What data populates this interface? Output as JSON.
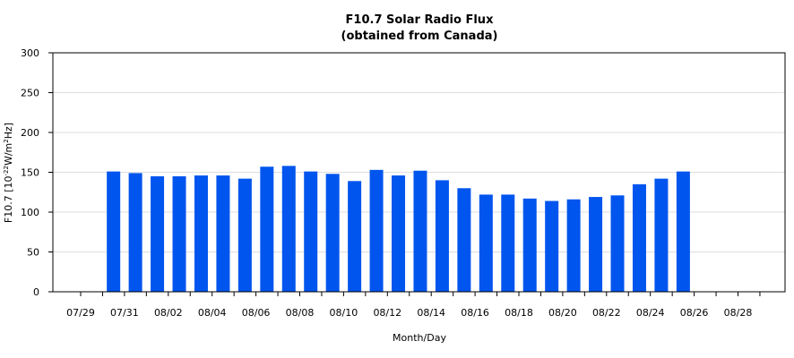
{
  "chart_data": {
    "type": "bar",
    "title": "F10.7 Solar Radio Flux",
    "subtitle": "(obtained from Canada)",
    "xlabel": "Month/Day",
    "ylabel_prefix": "F10.7 [10",
    "ylabel_exp1": "-22",
    "ylabel_mid": "W/m",
    "ylabel_exp2": "2",
    "ylabel_suffix": "Hz]",
    "ylim": [
      0,
      300
    ],
    "yticks": [
      0,
      50,
      100,
      150,
      200,
      250,
      300
    ],
    "grid": true,
    "bar_color": "#0055ee",
    "x_tick_labels": [
      "07/29",
      "07/31",
      "08/02",
      "08/04",
      "08/06",
      "08/08",
      "08/10",
      "08/12",
      "08/14",
      "08/16",
      "08/18",
      "08/20",
      "08/22",
      "08/24",
      "08/26",
      "08/28"
    ],
    "categories": [
      "07/29",
      "07/30",
      "07/31",
      "08/01",
      "08/02",
      "08/03",
      "08/04",
      "08/05",
      "08/06",
      "08/07",
      "08/08",
      "08/09",
      "08/10",
      "08/11",
      "08/12",
      "08/13",
      "08/14",
      "08/15",
      "08/16",
      "08/17",
      "08/18",
      "08/19",
      "08/20",
      "08/21",
      "08/22",
      "08/23",
      "08/24",
      "08/25",
      "08/26",
      "08/27",
      "08/28"
    ],
    "values": [
      null,
      151,
      149,
      145,
      145,
      146,
      146,
      142,
      157,
      158,
      151,
      148,
      139,
      153,
      146,
      152,
      140,
      130,
      122,
      122,
      117,
      114,
      116,
      119,
      121,
      135,
      142,
      151,
      null,
      null,
      null
    ]
  }
}
